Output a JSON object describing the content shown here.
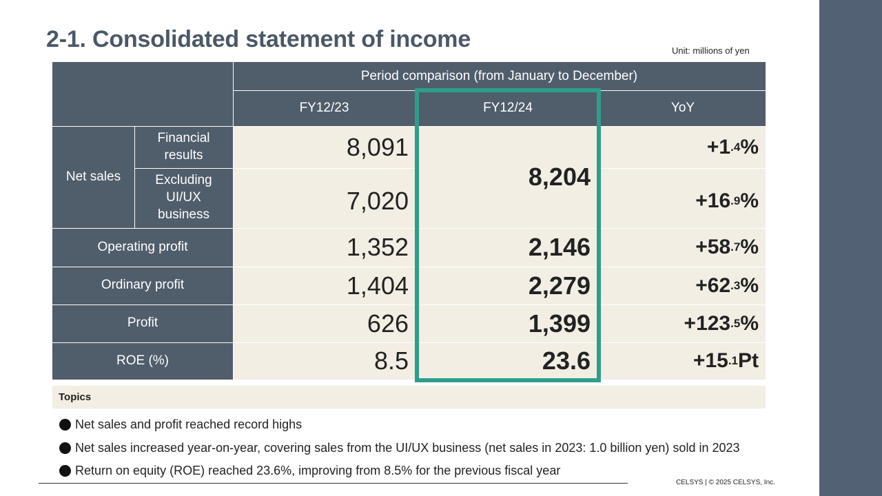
{
  "title": "2-1. Consolidated statement of income",
  "unit": "Unit: millions of yen",
  "table": {
    "period_header": "Period comparison (from January to December)",
    "columns": [
      "FY12/23",
      "FY12/24",
      "YoY"
    ],
    "net_sales_label": "Net sales",
    "financial_results_label": "Financial results",
    "excluding_label": "Excluding UI/UX business",
    "rows": {
      "financial_results": {
        "fy23": "8,091",
        "yoy_int": "+1",
        "yoy_dec": ".4",
        "yoy_unit": "%"
      },
      "excluding": {
        "fy23": "7,020",
        "yoy_int": "+16",
        "yoy_dec": ".9",
        "yoy_unit": "%"
      },
      "net_sales_fy24": "8,204",
      "operating": {
        "label": "Operating profit",
        "fy23": "1,352",
        "fy24": "2,146",
        "yoy_int": "+58",
        "yoy_dec": ".7",
        "yoy_unit": "%"
      },
      "ordinary": {
        "label": "Ordinary profit",
        "fy23": "1,404",
        "fy24": "2,279",
        "yoy_int": "+62",
        "yoy_dec": ".3",
        "yoy_unit": "%"
      },
      "profit": {
        "label": "Profit",
        "fy23": "626",
        "fy24": "1,399",
        "yoy_int": "+123",
        "yoy_dec": ".5",
        "yoy_unit": "%"
      },
      "roe": {
        "label": "ROE (%)",
        "fy23": "8.5",
        "fy24": "23.6",
        "yoy_int": "+15",
        "yoy_dec": ".1",
        "yoy_unit": " Pt"
      }
    }
  },
  "topics": {
    "label": "Topics",
    "items": [
      "Net sales and profit reached record highs",
      "Net sales increased year-on-year, covering sales from the UI/UX business (net sales in 2023: 1.0 billion yen) sold in 2023",
      "Return on equity (ROE) reached 23.6%, improving from 8.5% for the previous fiscal year"
    ]
  },
  "footer": "CELSYS | © 2025 CELSYS, Inc.",
  "colors": {
    "header_bg": "#505d6b",
    "value_bg": "#f2eee3",
    "highlight_border": "#2e9e8a",
    "side_bar": "#536175",
    "title": "#4a5868"
  }
}
